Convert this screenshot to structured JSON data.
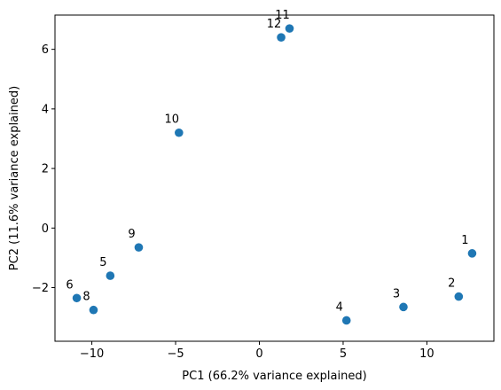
{
  "chart_data": {
    "type": "scatter",
    "title": "",
    "xlabel": "PC1 (66.2% variance explained)",
    "ylabel": "PC2 (11.6% variance explained)",
    "xlim": [
      -12.2,
      14.0
    ],
    "ylim": [
      -3.8,
      7.15
    ],
    "xticks": [
      -10,
      -5,
      0,
      5,
      10
    ],
    "yticks": [
      -2,
      0,
      2,
      4,
      6
    ],
    "grid": false,
    "marker_color": "#1f77b4",
    "points": [
      {
        "label": "1",
        "x": 12.7,
        "y": -0.85
      },
      {
        "label": "2",
        "x": 11.9,
        "y": -2.3
      },
      {
        "label": "3",
        "x": 8.6,
        "y": -2.65
      },
      {
        "label": "4",
        "x": 5.2,
        "y": -3.1
      },
      {
        "label": "5",
        "x": -8.9,
        "y": -1.6
      },
      {
        "label": "6",
        "x": -10.9,
        "y": -2.35
      },
      {
        "label": "8",
        "x": -9.9,
        "y": -2.75
      },
      {
        "label": "9",
        "x": -7.2,
        "y": -0.65
      },
      {
        "label": "10",
        "x": -4.8,
        "y": 3.2
      },
      {
        "label": "11",
        "x": 1.8,
        "y": 6.7
      },
      {
        "label": "12",
        "x": 1.3,
        "y": 6.4
      }
    ]
  }
}
